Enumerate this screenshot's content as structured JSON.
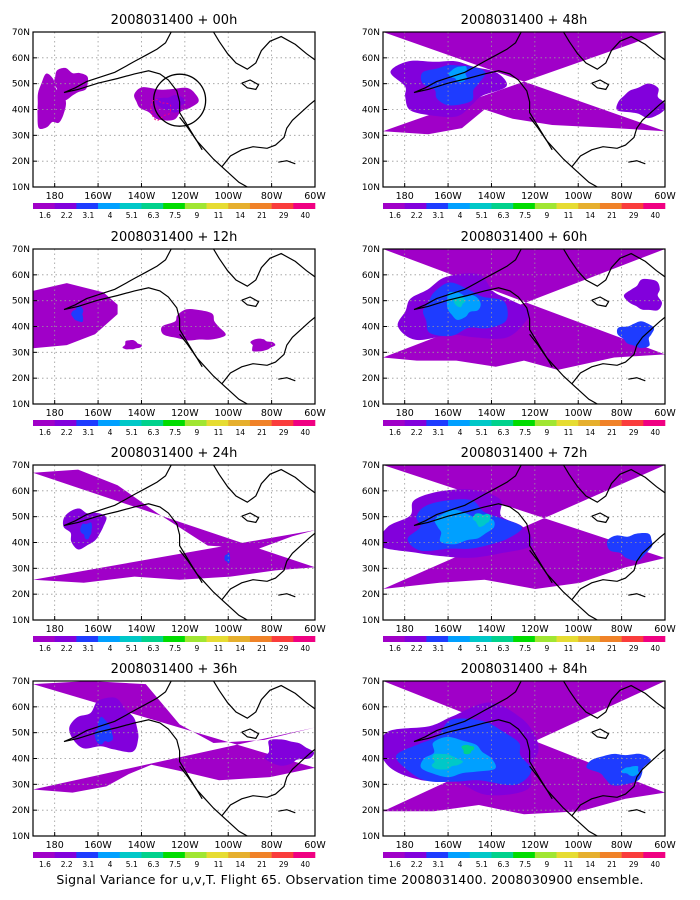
{
  "caption": "Signal Variance for u,v,T. Flight 65. Observation time 2008031400. 2008030900 ensemble.",
  "colorbar": {
    "labels": [
      "1.6",
      "2.2",
      "3.1",
      "4",
      "5.1",
      "6.3",
      "7.5",
      "9",
      "11",
      "14",
      "21",
      "29",
      "40"
    ],
    "colors": [
      "#a000c8",
      "#8200dc",
      "#1e3cff",
      "#00a0ff",
      "#00c8c8",
      "#00d28c",
      "#00dc00",
      "#a0e632",
      "#e6dc32",
      "#e6af2d",
      "#f08228",
      "#fa3c3c",
      "#f00082"
    ]
  },
  "chart_data": [
    {
      "type": "heatmap",
      "title": "2008031400 + 00h",
      "x_ticks": [
        "180",
        "160W",
        "140W",
        "120W",
        "100W",
        "80W",
        "60W"
      ],
      "y_ticks": [
        "10N",
        "20N",
        "30N",
        "40N",
        "50N",
        "60N",
        "70N"
      ],
      "xlim": [
        -190,
        -60
      ],
      "ylim": [
        10,
        70
      ],
      "grid": true,
      "observation_marker": "circle near 47N, 126W"
    },
    {
      "type": "heatmap",
      "title": "2008031400 + 12h",
      "x_ticks": [
        "180",
        "160W",
        "140W",
        "120W",
        "100W",
        "80W",
        "60W"
      ],
      "y_ticks": [
        "10N",
        "20N",
        "30N",
        "40N",
        "50N",
        "60N",
        "70N"
      ],
      "xlim": [
        -190,
        -60
      ],
      "ylim": [
        10,
        70
      ],
      "grid": true
    },
    {
      "type": "heatmap",
      "title": "2008031400 + 24h",
      "x_ticks": [
        "180",
        "160W",
        "140W",
        "120W",
        "100W",
        "80W",
        "60W"
      ],
      "y_ticks": [
        "10N",
        "20N",
        "30N",
        "40N",
        "50N",
        "60N",
        "70N"
      ],
      "xlim": [
        -190,
        -60
      ],
      "ylim": [
        10,
        70
      ],
      "grid": true
    },
    {
      "type": "heatmap",
      "title": "2008031400 + 36h",
      "x_ticks": [
        "180",
        "160W",
        "140W",
        "120W",
        "100W",
        "80W",
        "60W"
      ],
      "y_ticks": [
        "10N",
        "20N",
        "30N",
        "40N",
        "50N",
        "60N",
        "70N"
      ],
      "xlim": [
        -190,
        -60
      ],
      "ylim": [
        10,
        70
      ],
      "grid": true
    },
    {
      "type": "heatmap",
      "title": "2008031400 + 48h",
      "x_ticks": [
        "180",
        "160W",
        "140W",
        "120W",
        "100W",
        "80W",
        "60W"
      ],
      "y_ticks": [
        "10N",
        "20N",
        "30N",
        "40N",
        "50N",
        "60N",
        "70N"
      ],
      "xlim": [
        -190,
        -60
      ],
      "ylim": [
        10,
        70
      ],
      "grid": true
    },
    {
      "type": "heatmap",
      "title": "2008031400 + 60h",
      "x_ticks": [
        "180",
        "160W",
        "140W",
        "120W",
        "100W",
        "80W",
        "60W"
      ],
      "y_ticks": [
        "10N",
        "20N",
        "30N",
        "40N",
        "50N",
        "60N",
        "70N"
      ],
      "xlim": [
        -190,
        -60
      ],
      "ylim": [
        10,
        70
      ],
      "grid": true
    },
    {
      "type": "heatmap",
      "title": "2008031400 + 72h",
      "x_ticks": [
        "180",
        "160W",
        "140W",
        "120W",
        "100W",
        "80W",
        "60W"
      ],
      "y_ticks": [
        "10N",
        "20N",
        "30N",
        "40N",
        "50N",
        "60N",
        "70N"
      ],
      "xlim": [
        -190,
        -60
      ],
      "ylim": [
        10,
        70
      ],
      "grid": true
    },
    {
      "type": "heatmap",
      "title": "2008031400 + 84h",
      "x_ticks": [
        "180",
        "160W",
        "140W",
        "120W",
        "100W",
        "80W",
        "60W"
      ],
      "y_ticks": [
        "10N",
        "20N",
        "30N",
        "40N",
        "50N",
        "60N",
        "70N"
      ],
      "xlim": [
        -190,
        -60
      ],
      "ylim": [
        10,
        70
      ],
      "grid": true
    }
  ]
}
